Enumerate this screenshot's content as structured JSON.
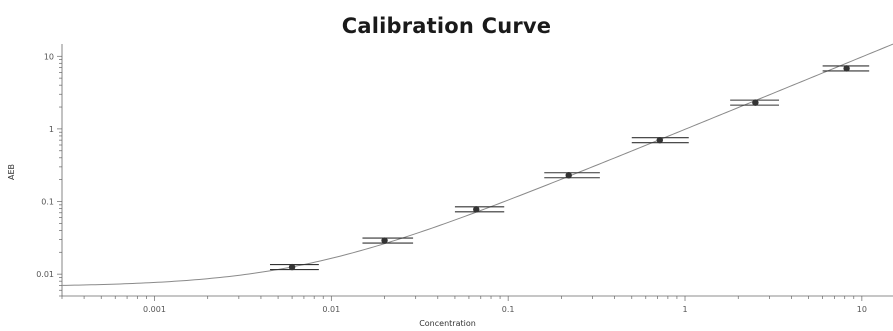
{
  "chart_data": {
    "type": "scatter",
    "title": "Calibration Curve",
    "xlabel": "Concentration",
    "ylabel": "AEB",
    "xscale": "log",
    "yscale": "log",
    "xlim": [
      0.0003,
      15
    ],
    "ylim": [
      0.005,
      13
    ],
    "x_ticks": [
      {
        "value": 0.001,
        "label": "0.001"
      },
      {
        "value": 0.01,
        "label": "0.01"
      },
      {
        "value": 0.1,
        "label": "0.1"
      },
      {
        "value": 1,
        "label": "1"
      },
      {
        "value": 10,
        "label": "10"
      }
    ],
    "y_ticks": [
      {
        "value": 0.01,
        "label": "0.01"
      },
      {
        "value": 0.1,
        "label": "0.1"
      },
      {
        "value": 1,
        "label": "1"
      },
      {
        "value": 10,
        "label": "10"
      }
    ],
    "grid": false,
    "points": [
      {
        "x": 0.006,
        "y": 0.0125,
        "xerr_low": 0.0045,
        "xerr_high": 0.0085
      },
      {
        "x": 0.02,
        "y": 0.029,
        "xerr_low": 0.015,
        "xerr_high": 0.029
      },
      {
        "x": 0.066,
        "y": 0.078,
        "xerr_low": 0.05,
        "xerr_high": 0.095
      },
      {
        "x": 0.22,
        "y": 0.23,
        "xerr_low": 0.16,
        "xerr_high": 0.33
      },
      {
        "x": 0.72,
        "y": 0.7,
        "xerr_low": 0.5,
        "xerr_high": 1.05
      },
      {
        "x": 2.5,
        "y": 2.3,
        "xerr_low": 1.8,
        "xerr_high": 3.4
      },
      {
        "x": 8.2,
        "y": 6.8,
        "xerr_low": 6.0,
        "xerr_high": 11.0
      }
    ],
    "fit_curve": {
      "type": "linear-with-offset",
      "offset": 0.0067,
      "slope": 0.98
    },
    "colors": {
      "curve": "#8a8a8a",
      "points": "#333333",
      "errorbars": "#333333",
      "axis": "#666666"
    }
  }
}
